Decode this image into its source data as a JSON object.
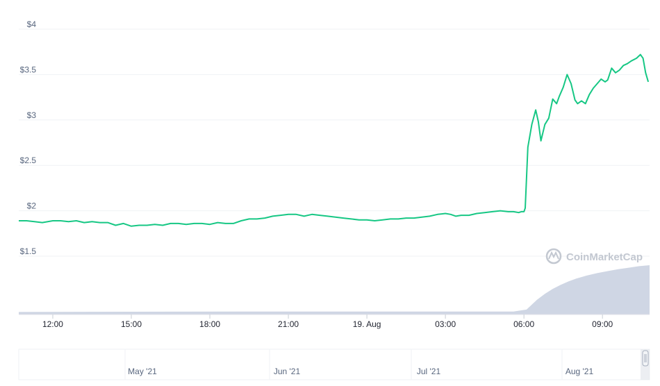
{
  "watermark": "CoinMarketCap",
  "chart_data": {
    "type": "line",
    "title": "",
    "xlabel": "",
    "ylabel": "",
    "ylim": [
      1.5,
      4
    ],
    "grid": true,
    "legend": "none",
    "colors": {
      "line": "#16c784",
      "volume": "#cfd6e4",
      "grid": "#eff2f5"
    },
    "yticks": [
      {
        "value": 1.5,
        "label": "$1.5"
      },
      {
        "value": 2,
        "label": "$2"
      },
      {
        "value": 2.5,
        "label": "$2.5"
      },
      {
        "value": 3,
        "label": "$3"
      },
      {
        "value": 3.5,
        "label": "$3.5"
      },
      {
        "value": 4,
        "label": "$4"
      }
    ],
    "x_hours_range": [
      10.7,
      34.8
    ],
    "xticks": [
      {
        "hour": 12,
        "label": "12:00"
      },
      {
        "hour": 15,
        "label": "15:00"
      },
      {
        "hour": 18,
        "label": "18:00"
      },
      {
        "hour": 21,
        "label": "21:00"
      },
      {
        "hour": 24,
        "label": "19. Aug"
      },
      {
        "hour": 27,
        "label": "03:00"
      },
      {
        "hour": 30,
        "label": "06:00"
      },
      {
        "hour": 33,
        "label": "09:00"
      }
    ],
    "price": {
      "x": [
        10.7,
        11.0,
        11.3,
        11.6,
        12.0,
        12.3,
        12.6,
        12.9,
        13.2,
        13.5,
        13.8,
        14.1,
        14.4,
        14.7,
        15.0,
        15.3,
        15.6,
        15.9,
        16.2,
        16.5,
        16.8,
        17.1,
        17.4,
        17.7,
        18.0,
        18.3,
        18.6,
        18.9,
        19.2,
        19.5,
        19.8,
        20.1,
        20.4,
        20.7,
        21.0,
        21.3,
        21.6,
        21.9,
        22.2,
        22.5,
        22.8,
        23.1,
        23.4,
        23.7,
        24.0,
        24.3,
        24.6,
        24.9,
        25.2,
        25.5,
        25.8,
        26.1,
        26.4,
        26.7,
        27.0,
        27.2,
        27.4,
        27.6,
        27.9,
        28.2,
        28.5,
        28.8,
        29.1,
        29.4,
        29.6,
        29.8,
        29.9,
        30.0,
        30.05,
        30.15,
        30.3,
        30.45,
        30.55,
        30.65,
        30.8,
        30.95,
        31.1,
        31.25,
        31.35,
        31.5,
        31.65,
        31.8,
        31.95,
        32.05,
        32.2,
        32.35,
        32.5,
        32.65,
        32.8,
        32.95,
        33.1,
        33.2,
        33.35,
        33.5,
        33.65,
        33.8,
        33.95,
        34.1,
        34.3,
        34.45,
        34.55,
        34.65,
        34.75
      ],
      "y": [
        1.89,
        1.89,
        1.88,
        1.87,
        1.89,
        1.89,
        1.88,
        1.89,
        1.87,
        1.88,
        1.87,
        1.87,
        1.84,
        1.86,
        1.83,
        1.84,
        1.84,
        1.85,
        1.84,
        1.86,
        1.86,
        1.85,
        1.86,
        1.86,
        1.85,
        1.87,
        1.86,
        1.86,
        1.89,
        1.91,
        1.91,
        1.92,
        1.94,
        1.95,
        1.96,
        1.96,
        1.94,
        1.96,
        1.95,
        1.94,
        1.93,
        1.92,
        1.91,
        1.9,
        1.9,
        1.89,
        1.9,
        1.91,
        1.91,
        1.92,
        1.92,
        1.93,
        1.94,
        1.96,
        1.97,
        1.96,
        1.94,
        1.95,
        1.95,
        1.97,
        1.98,
        1.99,
        2.0,
        1.99,
        1.99,
        1.98,
        1.99,
        1.99,
        2.03,
        2.7,
        2.95,
        3.11,
        2.98,
        2.77,
        2.95,
        3.02,
        3.23,
        3.18,
        3.26,
        3.36,
        3.5,
        3.4,
        3.22,
        3.18,
        3.21,
        3.18,
        3.28,
        3.35,
        3.4,
        3.45,
        3.42,
        3.44,
        3.57,
        3.52,
        3.55,
        3.6,
        3.62,
        3.65,
        3.68,
        3.72,
        3.68,
        3.52,
        3.42
      ]
    },
    "volume": {
      "x": [
        10.7,
        19.0,
        23.0,
        26.0,
        29.6,
        30.1,
        30.3,
        30.5,
        30.8,
        31.1,
        31.4,
        31.7,
        32.0,
        32.4,
        32.8,
        33.2,
        33.6,
        34.0,
        34.4,
        34.8
      ],
      "y": [
        0.05,
        0.06,
        0.06,
        0.06,
        0.06,
        0.1,
        0.2,
        0.3,
        0.42,
        0.52,
        0.6,
        0.67,
        0.73,
        0.79,
        0.84,
        0.88,
        0.92,
        0.95,
        0.98,
        1.0
      ]
    },
    "navigator": {
      "labels": [
        "May '21",
        "Jun '21",
        "Jul '21",
        "Aug '21"
      ]
    }
  }
}
